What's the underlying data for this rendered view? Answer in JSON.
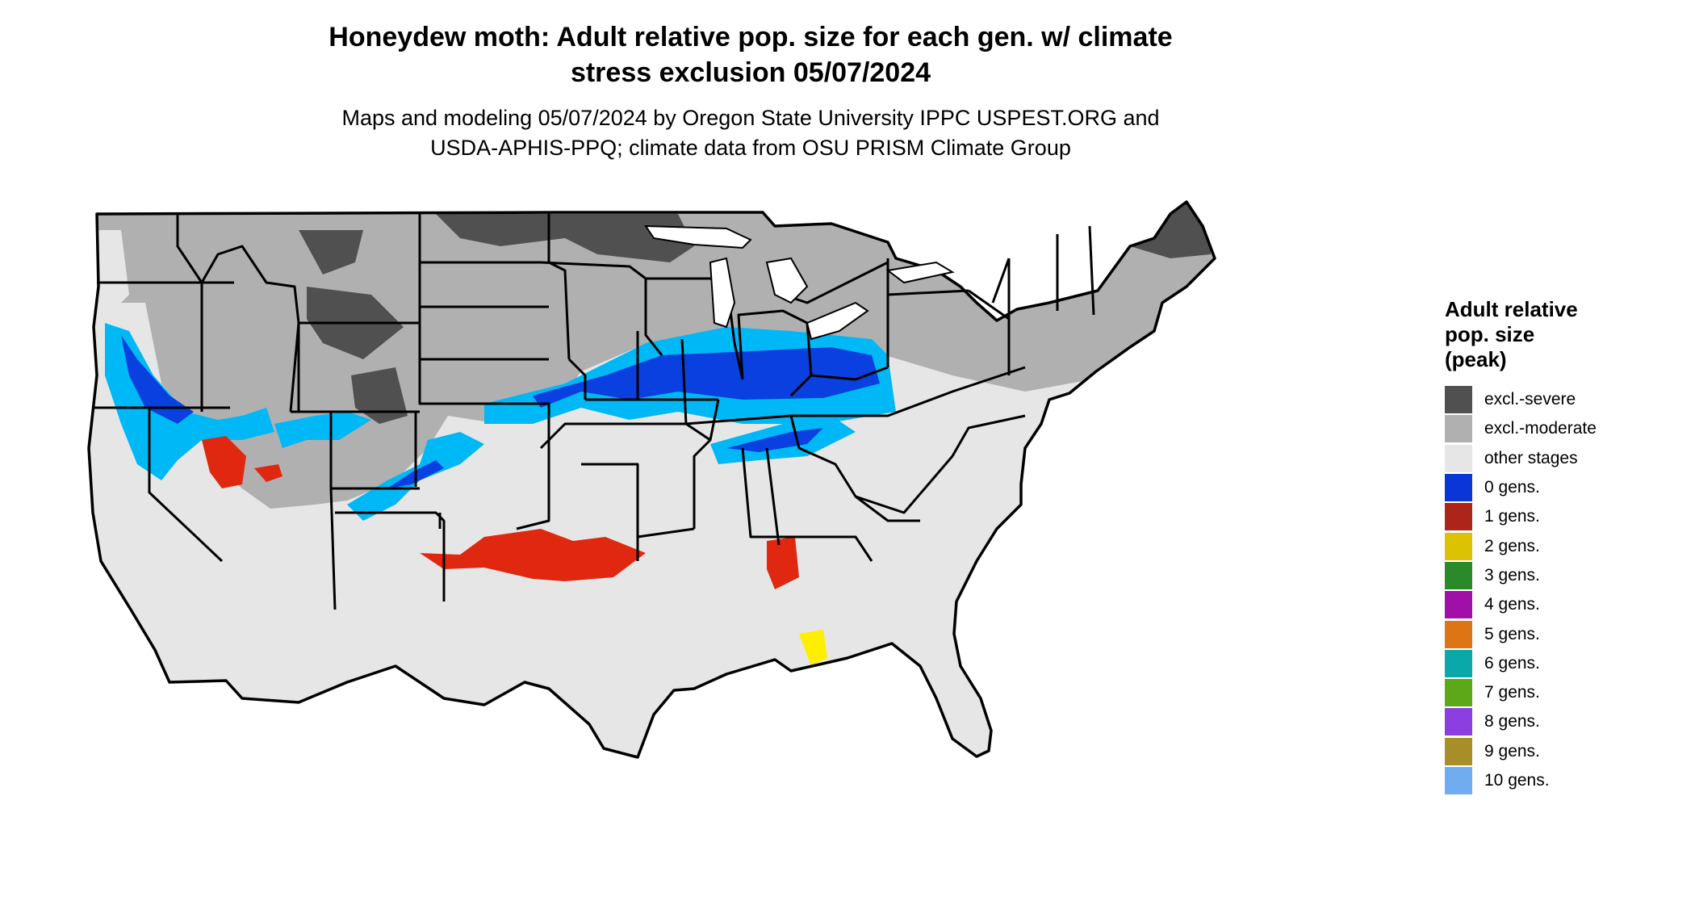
{
  "title_lines": [
    "Honeydew moth: Adult relative pop. size for each gen. w/ climate",
    "stress exclusion 05/07/2024"
  ],
  "subtitle_lines": [
    "Maps and modeling 05/07/2024 by Oregon State University IPPC USPEST.ORG and",
    "USDA-APHIS-PPQ; climate data from OSU PRISM Climate Group"
  ],
  "map": {
    "region": "Contiguous United States",
    "colors": {
      "excl_severe": "#505050",
      "excl_moderate": "#b0b0b0",
      "other_stages": "#e6e6e6",
      "blue_dark": "#0a3fe0",
      "blue_light": "#00b8f5",
      "red": "#e02810",
      "yellow": "#ffee00",
      "state_border": "#000000"
    }
  },
  "legend": {
    "title_lines": [
      "Adult relative",
      "pop. size",
      "(peak)"
    ],
    "items": [
      {
        "label": "excl.-severe",
        "color": "#505050"
      },
      {
        "label": "excl.-moderate",
        "color": "#b0b0b0"
      },
      {
        "label": "other stages",
        "color": "#e6e6e6"
      },
      {
        "label": "0 gens.",
        "color": "#0a36d8"
      },
      {
        "label": "1 gens.",
        "color": "#ad2418"
      },
      {
        "label": "2 gens.",
        "color": "#dcc200"
      },
      {
        "label": "3 gens.",
        "color": "#2a8a2a"
      },
      {
        "label": "4 gens.",
        "color": "#a010a8"
      },
      {
        "label": "5 gens.",
        "color": "#dd7515"
      },
      {
        "label": "6 gens.",
        "color": "#0aa8a8"
      },
      {
        "label": "7 gens.",
        "color": "#5ca818"
      },
      {
        "label": "8 gens.",
        "color": "#8c3ee0"
      },
      {
        "label": "9 gens.",
        "color": "#a88e28"
      },
      {
        "label": "10 gens.",
        "color": "#70acf0"
      }
    ]
  }
}
